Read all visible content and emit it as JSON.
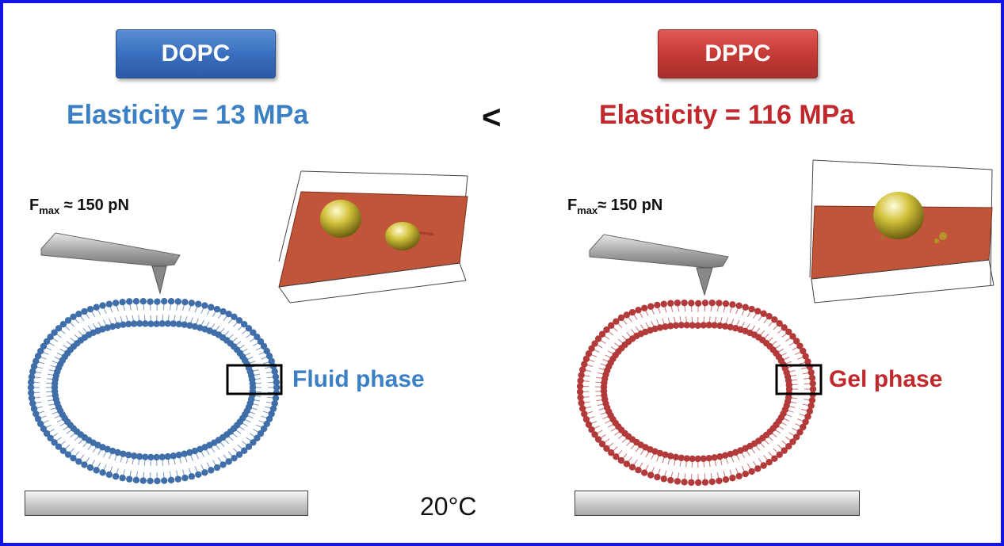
{
  "left": {
    "lipid": "DOPC",
    "elasticity": "Elasticity = 13 MPa",
    "force_main": "F",
    "force_sub": "max",
    "force_value": " ≈ 150 pN",
    "phase": "Fluid phase",
    "color": "#3b7fc4"
  },
  "right": {
    "lipid": "DPPC",
    "elasticity": "Elasticity = 116 MPa",
    "force_main": "F",
    "force_sub": "max",
    "force_value": "≈ 150 pN",
    "phase": "Gel phase",
    "color": "#c0282c"
  },
  "comparison": "<",
  "temperature": "20°C",
  "icons": [
    "afm-cantilever-icon",
    "vesicle-bilayer-icon",
    "afm-3d-topography-icon",
    "substrate-icon"
  ]
}
